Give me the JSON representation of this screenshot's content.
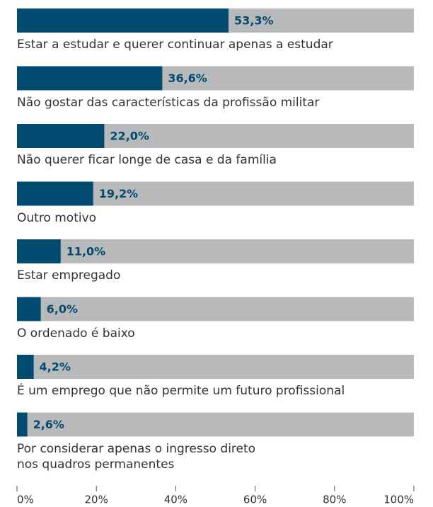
{
  "chart_data": {
    "type": "bar",
    "orientation": "horizontal",
    "categories": [
      "Estar a estudar e querer continuar apenas a estudar",
      "Não gostar das características da profissão militar",
      "Não querer ficar longe de casa e da família",
      "Outro motivo",
      "Estar empregado",
      "O ordenado é baixo",
      "É um emprego que não permite um futuro profissional",
      "Por considerar apenas o ingresso direto\nnos quadros permanentes"
    ],
    "values": [
      53.3,
      36.6,
      22.0,
      19.2,
      11.0,
      6.0,
      4.2,
      2.6
    ],
    "value_labels": [
      "53,3%",
      "36,6%",
      "22,0%",
      "19,2%",
      "11,0%",
      "6,0%",
      "4,2%",
      "2,6%"
    ],
    "color": "#004b6f",
    "background_color": "#b8b9bb",
    "xlim": [
      0,
      100
    ],
    "xticks": [
      {
        "value": 0,
        "label": "0%"
      },
      {
        "value": 20,
        "label": "20%"
      },
      {
        "value": 40,
        "label": "40%"
      },
      {
        "value": 60,
        "label": "60%"
      },
      {
        "value": 80,
        "label": "80%"
      },
      {
        "value": 100,
        "label": "100%"
      }
    ]
  }
}
